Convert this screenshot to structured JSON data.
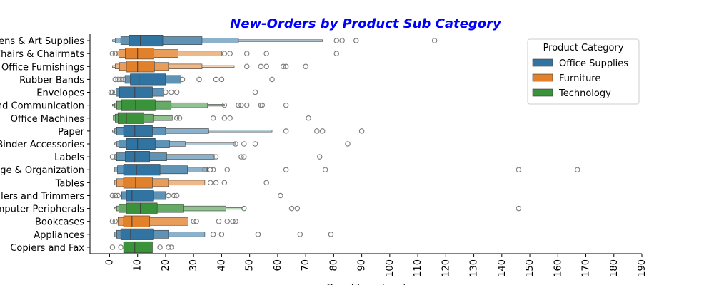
{
  "chart_data": {
    "type": "boxen",
    "title": "New-Orders by Product Sub Category",
    "xlabel": "Quantity ordered",
    "legend_title": "Product Category",
    "legend_loc": "upper right",
    "series": [
      {
        "name": "Office Supplies",
        "color": "#3274a1"
      },
      {
        "name": "Furniture",
        "color": "#e1812c"
      },
      {
        "name": "Technology",
        "color": "#3a923a"
      }
    ],
    "xlim": [
      -7,
      190
    ],
    "xticks": [
      0,
      10,
      20,
      30,
      40,
      50,
      60,
      70,
      80,
      90,
      100,
      110,
      120,
      130,
      140,
      150,
      160,
      170,
      180,
      190
    ],
    "groups": [
      {
        "label": "Pens & Art Supplies",
        "category": "Office Supplies",
        "median": 11,
        "levels": [
          [
            7,
            19
          ],
          [
            4,
            33
          ],
          [
            2,
            46
          ],
          [
            1,
            76
          ]
        ],
        "outliers": [
          81,
          83,
          88,
          116
        ]
      },
      {
        "label": "Chairs & Chairmats",
        "category": "Furniture",
        "median": 10,
        "levels": [
          [
            5.6,
            15.8
          ],
          [
            3.3,
            24.5
          ],
          [
            2.3,
            40
          ]
        ],
        "outliers": [
          1,
          2,
          41,
          43,
          49,
          56,
          81
        ]
      },
      {
        "label": "Office Furnishings",
        "category": "Furniture",
        "median": 10,
        "levels": [
          [
            6,
            16
          ],
          [
            3.5,
            21
          ],
          [
            2,
            33
          ],
          [
            1,
            44.5
          ]
        ],
        "outliers": [
          49,
          54,
          56,
          62,
          63,
          70
        ]
      },
      {
        "label": "Rubber Bands",
        "category": "Office Supplies",
        "median": 10.5,
        "levels": [
          [
            7.4,
            20
          ],
          [
            5.5,
            25.5
          ]
        ],
        "outliers": [
          2,
          3,
          4,
          5,
          26,
          32,
          38,
          40,
          58
        ]
      },
      {
        "label": "Envelopes",
        "category": "Office Supplies",
        "median": 9,
        "levels": [
          [
            3.5,
            15.3
          ],
          [
            2.3,
            19.4
          ]
        ],
        "outliers": [
          0.5,
          1,
          2,
          20,
          22,
          24,
          52
        ]
      },
      {
        "label": "Telephones and Communication",
        "category": "Technology",
        "median": 9.3,
        "levels": [
          [
            4.3,
            16.3
          ],
          [
            2.5,
            22
          ],
          [
            1.8,
            35
          ],
          [
            1,
            41
          ]
        ],
        "outliers": [
          41,
          46,
          47,
          49,
          54,
          54.5,
          63
        ]
      },
      {
        "label": "Office Machines",
        "category": "Technology",
        "median": 6,
        "levels": [
          [
            3,
            12.2
          ],
          [
            2,
            15.5
          ],
          [
            1.3,
            22.4
          ]
        ],
        "outliers": [
          24,
          25,
          37,
          41,
          43,
          71
        ]
      },
      {
        "label": "Paper",
        "category": "Office Supplies",
        "median": 9,
        "levels": [
          [
            5,
            15.3
          ],
          [
            2.5,
            20
          ],
          [
            1.8,
            35.4
          ],
          [
            1,
            58
          ]
        ],
        "outliers": [
          63,
          74,
          76,
          90
        ]
      },
      {
        "label": "Binders and Binder Accessories",
        "category": "Office Supplies",
        "median": 10,
        "levels": [
          [
            6,
            16.3
          ],
          [
            3.3,
            21.4
          ],
          [
            2.5,
            27
          ],
          [
            1.8,
            45
          ]
        ],
        "outliers": [
          45,
          48,
          52,
          85
        ]
      },
      {
        "label": "Labels",
        "category": "Office Supplies",
        "median": 9,
        "levels": [
          [
            5.6,
            14.3
          ],
          [
            2.5,
            20.4
          ],
          [
            1.8,
            37.4
          ]
        ],
        "outliers": [
          1,
          38,
          47,
          48,
          75
        ]
      },
      {
        "label": "Storage & Organization",
        "category": "Office Supplies",
        "median": 9.6,
        "levels": [
          [
            5,
            18
          ],
          [
            2.8,
            27.8
          ],
          [
            1.8,
            35
          ]
        ],
        "outliers": [
          34,
          36,
          37,
          42,
          63,
          77,
          146,
          167
        ]
      },
      {
        "label": "Tables",
        "category": "Furniture",
        "median": 9.3,
        "levels": [
          [
            5,
            15.3
          ],
          [
            2.5,
            21
          ],
          [
            1.8,
            34
          ]
        ],
        "outliers": [
          36,
          38,
          41,
          56
        ]
      },
      {
        "label": "Scissors, Rulers and Trimmers",
        "category": "Office Supplies",
        "median": 8,
        "levels": [
          [
            6,
            15.5
          ],
          [
            4.3,
            20
          ]
        ],
        "outliers": [
          1,
          2,
          3,
          21,
          23,
          24,
          61
        ]
      },
      {
        "label": "Computer Peripherals",
        "category": "Technology",
        "median": 11,
        "levels": [
          [
            6,
            17
          ],
          [
            3.3,
            26.5
          ],
          [
            2.5,
            41.5
          ],
          [
            1.8,
            47.6
          ]
        ],
        "outliers": [
          48,
          65,
          67,
          146
        ]
      },
      {
        "label": "Bookcases",
        "category": "Furniture",
        "median": 8,
        "levels": [
          [
            5,
            14.3
          ],
          [
            3,
            28
          ]
        ],
        "outliers": [
          1,
          2,
          30,
          31,
          39,
          42,
          44,
          45
        ]
      },
      {
        "label": "Appliances",
        "category": "Office Supplies",
        "median": 7.5,
        "levels": [
          [
            4,
            15.5
          ],
          [
            2.5,
            21
          ],
          [
            1.8,
            34
          ]
        ],
        "outliers": [
          37,
          40,
          53,
          68,
          79
        ]
      },
      {
        "label": "Copiers and Fax",
        "category": "Technology",
        "median": 9,
        "levels": [
          [
            5,
            15.3
          ]
        ],
        "outliers": [
          1,
          4,
          18,
          21,
          22
        ]
      }
    ]
  }
}
